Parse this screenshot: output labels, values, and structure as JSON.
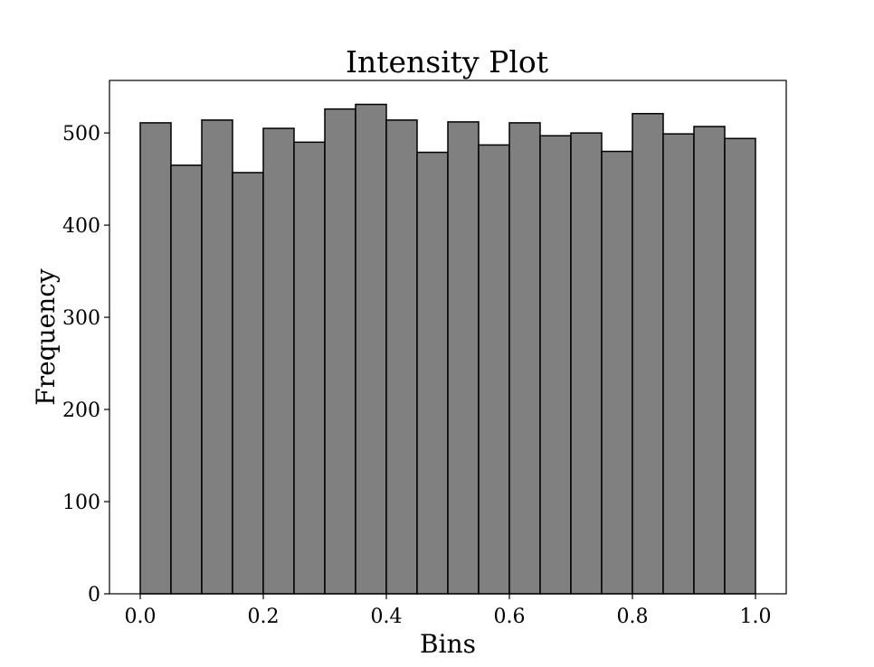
{
  "chart_data": {
    "type": "bar",
    "title": "Intensity Plot",
    "xlabel": "Bins",
    "ylabel": "Frequency",
    "xlim": [
      -0.05,
      1.05
    ],
    "ylim": [
      0,
      557
    ],
    "bin_edges": [
      0.0,
      0.05,
      0.1,
      0.15,
      0.2,
      0.25,
      0.3,
      0.35,
      0.4,
      0.45,
      0.5,
      0.55,
      0.6,
      0.65,
      0.7,
      0.75,
      0.8,
      0.85,
      0.9,
      0.95,
      1.0
    ],
    "values": [
      511,
      465,
      514,
      457,
      505,
      490,
      526,
      531,
      514,
      479,
      512,
      487,
      511,
      497,
      500,
      480,
      521,
      499,
      507,
      494
    ],
    "x_ticks": [
      0.0,
      0.2,
      0.4,
      0.6,
      0.8,
      1.0
    ],
    "x_tick_labels": [
      "0.0",
      "0.2",
      "0.4",
      "0.6",
      "0.8",
      "1.0"
    ],
    "y_ticks": [
      0,
      100,
      200,
      300,
      400,
      500
    ],
    "y_tick_labels": [
      "0",
      "100",
      "200",
      "300",
      "400",
      "500"
    ],
    "bar_color": "#808080",
    "edge_color": "#000000",
    "grid": false,
    "legend": "none"
  }
}
